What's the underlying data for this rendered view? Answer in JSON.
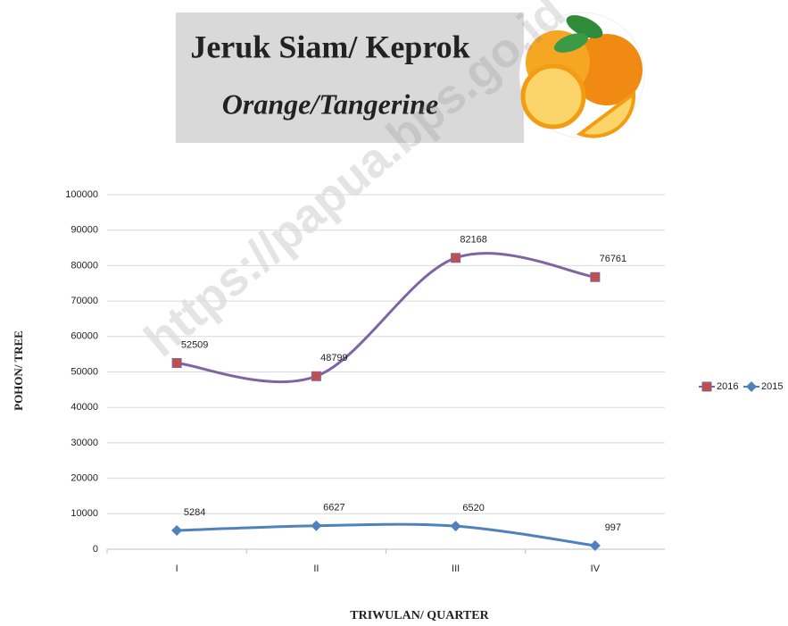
{
  "chart_data": {
    "type": "line",
    "title": "Jeruk Siam/ Keprok",
    "subtitle": "Orange/Tangerine",
    "watermark": "https://papua.bps.go.id",
    "y_label": "POHON/ TREE",
    "x_label": "TRIWULAN/ QUARTER",
    "categories": [
      "I",
      "II",
      "III",
      "IV"
    ],
    "series": [
      {
        "name": "2016",
        "color": "#8064a2",
        "marker_color": "#c0504d",
        "marker": "square",
        "values": [
          52509,
          48799,
          82168,
          76761
        ]
      },
      {
        "name": "2015",
        "color": "#4f81bd",
        "marker_color": "#4f81bd",
        "marker": "diamond",
        "values": [
          5284,
          6627,
          6520,
          997
        ]
      }
    ],
    "ylim": [
      0,
      100000
    ],
    "yticks": [
      0,
      10000,
      20000,
      30000,
      40000,
      50000,
      60000,
      70000,
      80000,
      90000,
      100000
    ],
    "grid": true,
    "smooth": true,
    "legend": "right"
  }
}
